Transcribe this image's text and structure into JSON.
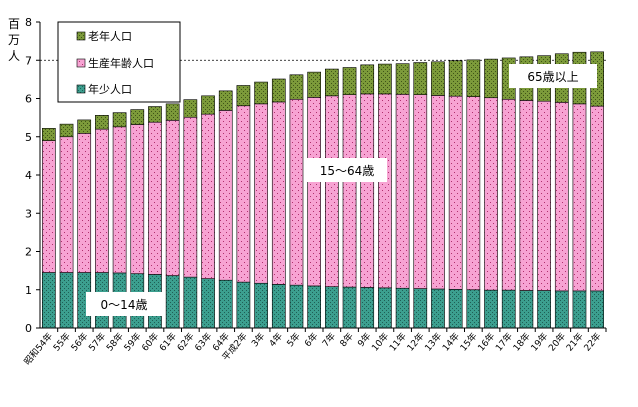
{
  "chart_data": {
    "type": "bar",
    "stacked": true,
    "ylabel": "百万人",
    "ylim": [
      0,
      8
    ],
    "yticks": [
      0,
      1,
      2,
      3,
      4,
      5,
      6,
      7,
      8
    ],
    "reference_line": 7,
    "categories": [
      "昭和54年",
      "55年",
      "56年",
      "57年",
      "58年",
      "59年",
      "60年",
      "61年",
      "62年",
      "63年",
      "64年",
      "平成2年",
      "3年",
      "4年",
      "5年",
      "6年",
      "7年",
      "8年",
      "9年",
      "10年",
      "11年",
      "12年",
      "13年",
      "14年",
      "15年",
      "16年",
      "17年",
      "18年",
      "19年",
      "20年",
      "21年",
      "22年"
    ],
    "series": [
      {
        "name": "年少人口",
        "color": "#3c9f8f",
        "values": [
          1.45,
          1.45,
          1.45,
          1.45,
          1.44,
          1.42,
          1.4,
          1.37,
          1.33,
          1.29,
          1.25,
          1.2,
          1.17,
          1.14,
          1.12,
          1.1,
          1.08,
          1.07,
          1.06,
          1.05,
          1.04,
          1.03,
          1.02,
          1.01,
          1.0,
          0.99,
          0.99,
          0.98,
          0.98,
          0.97,
          0.97,
          0.97
        ]
      },
      {
        "name": "生産年齢人口",
        "color": "#f7a3d3",
        "values": [
          3.45,
          3.55,
          3.64,
          3.75,
          3.82,
          3.9,
          3.98,
          4.06,
          4.18,
          4.3,
          4.44,
          4.61,
          4.69,
          4.77,
          4.86,
          4.93,
          4.99,
          5.03,
          5.06,
          5.07,
          5.07,
          5.07,
          5.06,
          5.05,
          5.05,
          5.03,
          4.99,
          4.97,
          4.95,
          4.93,
          4.89,
          4.83
        ]
      },
      {
        "name": "老年人口",
        "color": "#7c9a3a",
        "values": [
          0.32,
          0.33,
          0.35,
          0.36,
          0.37,
          0.39,
          0.41,
          0.43,
          0.46,
          0.48,
          0.51,
          0.53,
          0.57,
          0.6,
          0.64,
          0.66,
          0.7,
          0.71,
          0.76,
          0.78,
          0.8,
          0.84,
          0.88,
          0.93,
          0.96,
          1.01,
          1.08,
          1.14,
          1.19,
          1.27,
          1.35,
          1.42
        ]
      }
    ],
    "labels": {
      "young": "0～14歳",
      "working": "15～64歳",
      "old": "65歳以上"
    },
    "legend_position": "top-left"
  }
}
